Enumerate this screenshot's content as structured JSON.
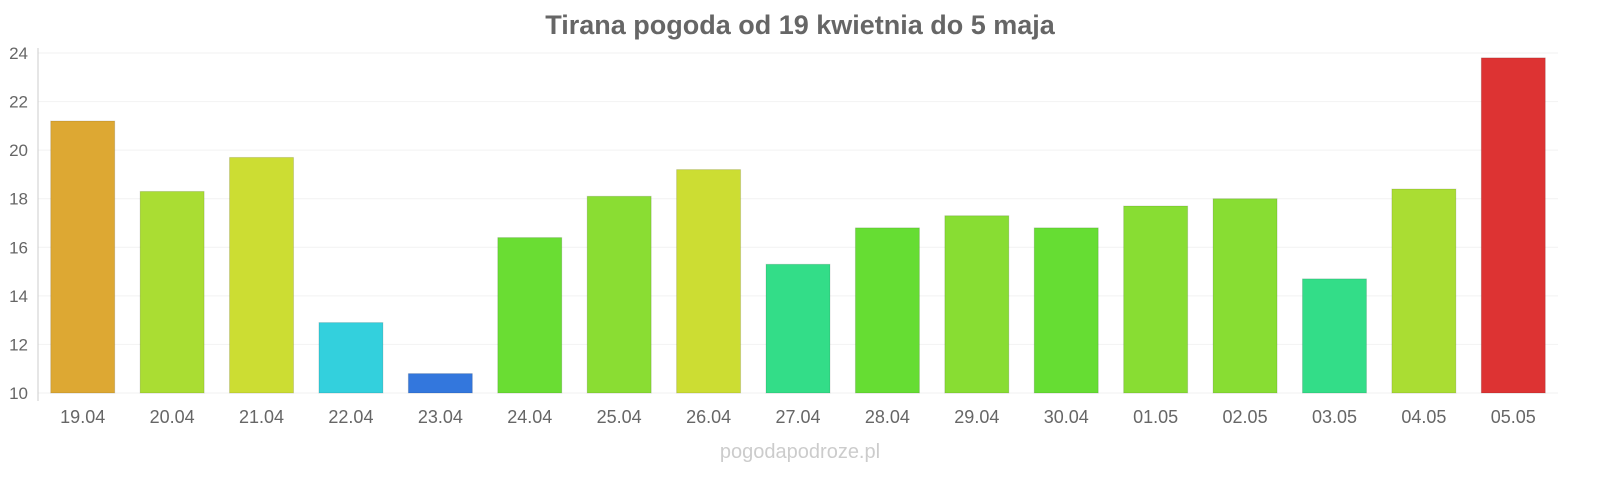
{
  "chart_data": {
    "type": "bar",
    "title": "Tirana pogoda od 19 kwietnia do 5 maja",
    "xlabel": "",
    "ylabel": "",
    "ylim": [
      10,
      24
    ],
    "yticks": [
      10,
      12,
      14,
      16,
      18,
      20,
      22,
      24
    ],
    "grid": true,
    "categories": [
      "19.04",
      "20.04",
      "21.04",
      "22.04",
      "23.04",
      "24.04",
      "25.04",
      "26.04",
      "27.04",
      "28.04",
      "29.04",
      "30.04",
      "01.05",
      "02.05",
      "03.05",
      "04.05",
      "05.05"
    ],
    "values": [
      21.2,
      18.3,
      19.7,
      12.9,
      10.8,
      16.4,
      18.1,
      19.2,
      15.3,
      16.8,
      17.3,
      16.8,
      17.7,
      18.0,
      14.7,
      18.4,
      23.8
    ],
    "colors": [
      "#dda833",
      "#aadd33",
      "#ccdd33",
      "#33d0dd",
      "#3377dd",
      "#6add33",
      "#8add33",
      "#ccdd33",
      "#33dd88",
      "#66dd33",
      "#88dd33",
      "#66dd33",
      "#88dd33",
      "#88dd33",
      "#33dd88",
      "#aadd33",
      "#dd3333"
    ]
  },
  "watermark": "pogodapodroze.pl"
}
